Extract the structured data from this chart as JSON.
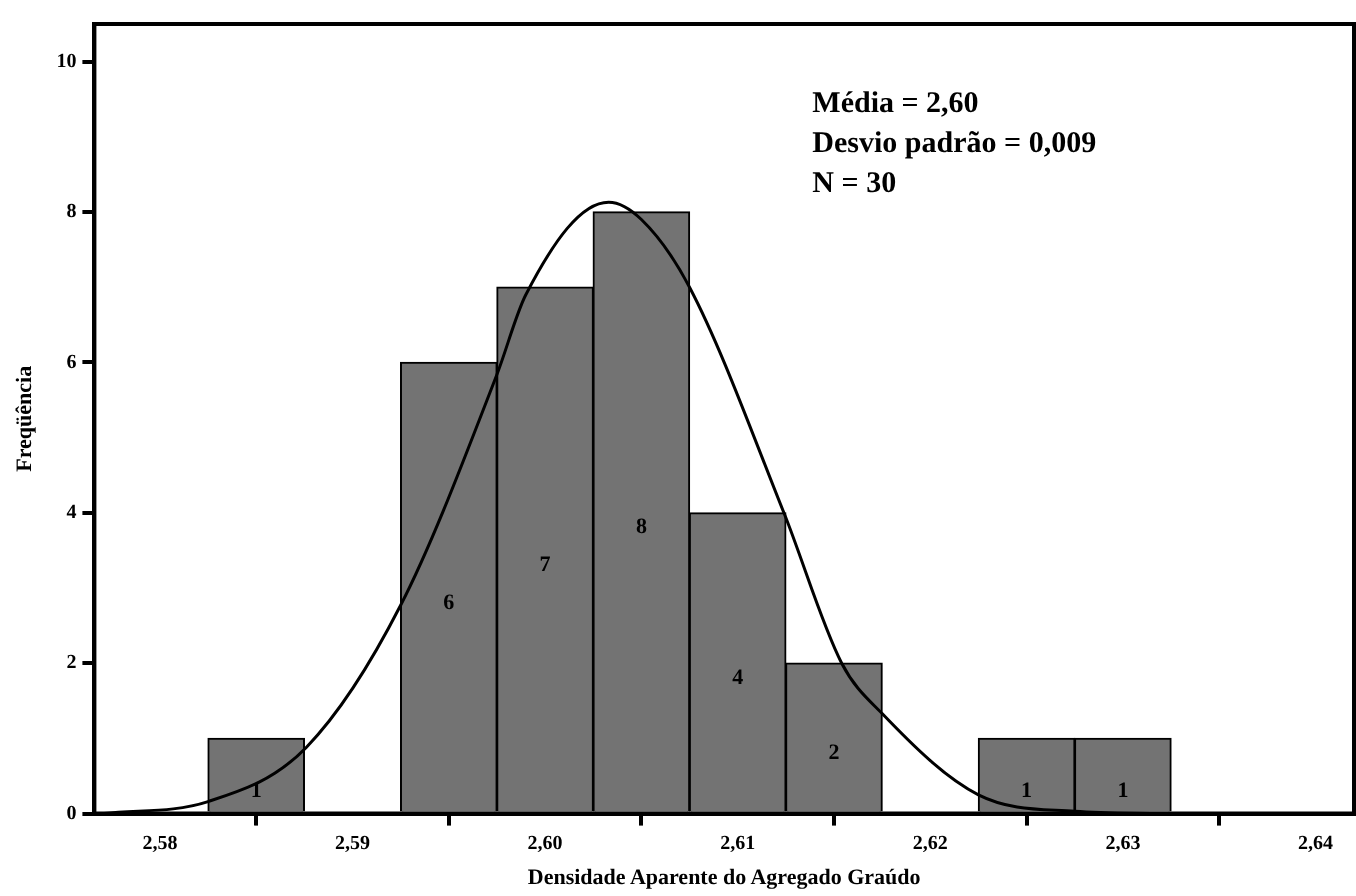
{
  "chart_data": {
    "type": "histogram",
    "xlabel": "Densidade Aparente do Agregado Graúdo",
    "ylabel": "Freqüência",
    "annotations": [
      "Média = 2,60",
      "Desvio padrão = 0,009",
      "N = 30"
    ],
    "bins": [
      2.5825,
      2.5875,
      2.5925,
      2.5975,
      2.6025,
      2.6075,
      2.6125,
      2.6175,
      2.6225,
      2.6275,
      2.6325
    ],
    "values": [
      1,
      0,
      6,
      7,
      8,
      4,
      2,
      0,
      1,
      1
    ],
    "value_labels": [
      "1",
      null,
      "6",
      "7",
      "8",
      "4",
      "2",
      null,
      "1",
      "1"
    ],
    "color": "#737373",
    "series": [
      {
        "type": "line",
        "color": "#000000",
        "x": [
          2.5771,
          2.5825,
          2.5876,
          2.5925,
          2.5975,
          2.599,
          2.6033,
          2.605,
          2.6075,
          2.6124,
          2.6154,
          2.6175,
          2.6225,
          2.6275,
          2.632
        ],
        "values": [
          0,
          0.16,
          0.88,
          2.77,
          5.84,
          6.9,
          8.13,
          7.9,
          7.0,
          4.0,
          2.0,
          1.33,
          0.25,
          0.03,
          0
        ]
      }
    ],
    "marker": "none",
    "grid": false,
    "legend": false,
    "xlim": [
      2.5766,
      2.642
    ],
    "ylim": [
      0,
      10.5
    ],
    "xticks": [
      {
        "value": 2.58,
        "label": "2,58"
      },
      {
        "value": 2.59,
        "label": "2,59"
      },
      {
        "value": 2.6,
        "label": "2,60"
      },
      {
        "value": 2.61,
        "label": "2,61"
      },
      {
        "value": 2.62,
        "label": "2,62"
      },
      {
        "value": 2.63,
        "label": "2,63"
      },
      {
        "value": 2.64,
        "label": "2,64"
      }
    ],
    "yticks": [
      0,
      2,
      4,
      6,
      8,
      10
    ]
  }
}
